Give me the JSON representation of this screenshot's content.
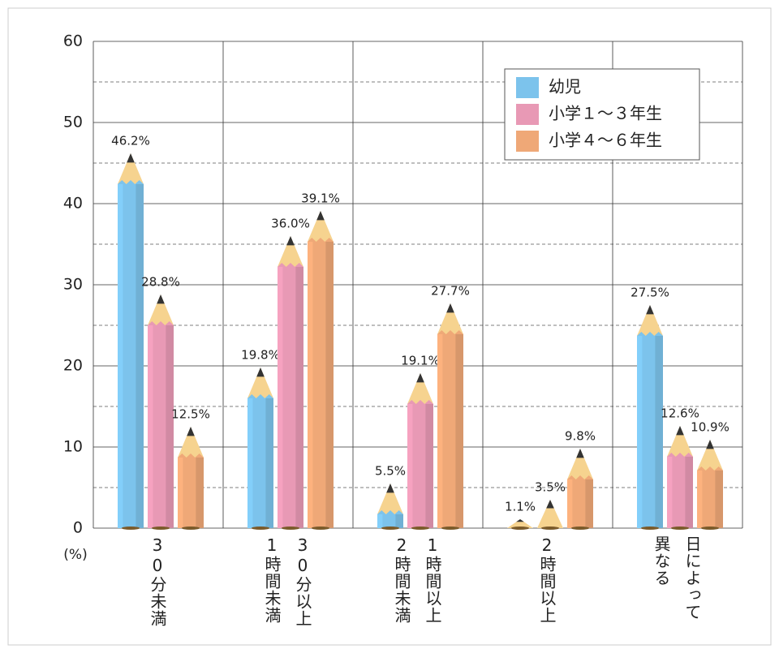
{
  "chart_data": {
    "type": "pencil-bar",
    "y_label": "(%)",
    "categories": [
      [
        "30分未満"
      ],
      [
        "30分以上",
        "1時間未満"
      ],
      [
        "1時間以上",
        "2時間未満"
      ],
      [
        "2時間以上"
      ],
      [
        "日によって",
        "異なる"
      ]
    ],
    "series": [
      {
        "name": "幼児",
        "color": "#7cc3ec",
        "values": [
          46.2,
          19.8,
          5.5,
          1.1,
          27.5
        ],
        "value_labels": [
          "46.2%",
          "19.8%",
          "5.5%",
          "1.1%",
          "27.5%"
        ]
      },
      {
        "name": "小学１～３年生",
        "color": "#e899b5",
        "values": [
          28.8,
          36.0,
          19.1,
          3.5,
          12.6
        ],
        "value_labels": [
          "28.8%",
          "36.0%",
          "19.1%",
          "3.5%",
          "12.6%"
        ]
      },
      {
        "name": "小学４～６年生",
        "color": "#efa877",
        "values": [
          12.5,
          39.1,
          27.7,
          9.8,
          10.9
        ],
        "value_labels": [
          "12.5%",
          "39.1%",
          "27.7%",
          "9.8%",
          "10.9%"
        ]
      }
    ],
    "ylim": [
      0,
      60
    ],
    "yticks": [
      0,
      10,
      20,
      30,
      40,
      50,
      60
    ],
    "minor_yticks": [
      5,
      15,
      25,
      35,
      45,
      55
    ],
    "grid": true,
    "legend": "top-right"
  }
}
